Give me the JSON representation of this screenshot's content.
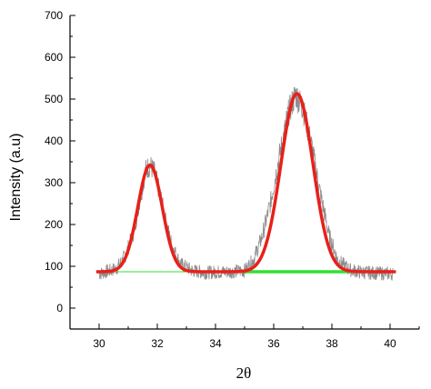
{
  "chart_data": {
    "type": "line",
    "xlabel": "2θ",
    "ylabel": "Intensity (a.u)",
    "xlim": [
      29,
      41
    ],
    "ylim": [
      -50,
      700
    ],
    "xticks": [
      30,
      32,
      34,
      36,
      38,
      40
    ],
    "yticks": [
      0,
      100,
      200,
      300,
      400,
      500,
      600,
      700
    ],
    "grid": false,
    "legend": "none",
    "series": [
      {
        "kind": "raw",
        "color": "#8c8c8c",
        "x_range": [
          30,
          40.1
        ],
        "points": [
          [
            30.0,
            82
          ],
          [
            30.3,
            88
          ],
          [
            30.6,
            95
          ],
          [
            30.9,
            125
          ],
          [
            31.2,
            185
          ],
          [
            31.4,
            260
          ],
          [
            31.6,
            330
          ],
          [
            31.75,
            342
          ],
          [
            31.9,
            325
          ],
          [
            32.1,
            270
          ],
          [
            32.3,
            205
          ],
          [
            32.5,
            150
          ],
          [
            32.8,
            105
          ],
          [
            33.2,
            90
          ],
          [
            33.6,
            85
          ],
          [
            34.0,
            86
          ],
          [
            34.5,
            87
          ],
          [
            35.0,
            90
          ],
          [
            35.3,
            115
          ],
          [
            35.6,
            170
          ],
          [
            35.9,
            255
          ],
          [
            36.2,
            365
          ],
          [
            36.5,
            465
          ],
          [
            36.75,
            512
          ],
          [
            37.0,
            480
          ],
          [
            37.3,
            390
          ],
          [
            37.6,
            275
          ],
          [
            37.9,
            175
          ],
          [
            38.2,
            115
          ],
          [
            38.6,
            92
          ],
          [
            39.0,
            86
          ],
          [
            39.5,
            84
          ],
          [
            40.1,
            82
          ]
        ],
        "noise": 22
      },
      {
        "kind": "fit",
        "color": "#e8201a",
        "baseline": 87,
        "x_range": [
          29.9,
          40.2
        ],
        "peaks": [
          {
            "center": 31.75,
            "height": 255,
            "sigma": 0.42
          },
          {
            "center": 36.8,
            "height": 426,
            "sigma": 0.55
          }
        ]
      },
      {
        "kind": "baseline",
        "color": "#33e033",
        "y": 87,
        "segments": [
          {
            "x": [
              30.6,
              35.0
            ],
            "width": 1
          },
          {
            "x": [
              35.0,
              38.6
            ],
            "width": 3.5
          }
        ]
      }
    ]
  }
}
